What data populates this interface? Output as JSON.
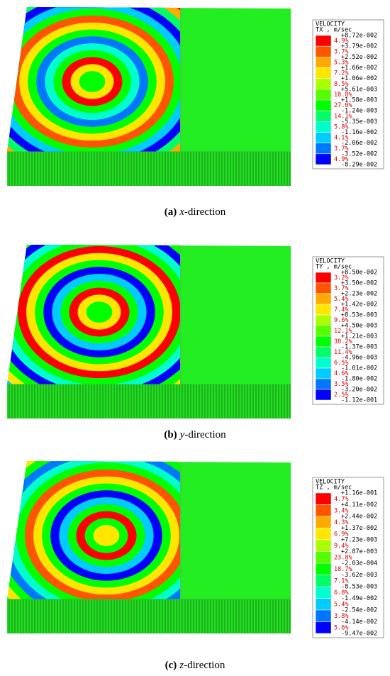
{
  "legend_colors": [
    "#ff0000",
    "#ff5500",
    "#ffaa00",
    "#ffe600",
    "#aaff00",
    "#55ff00",
    "#00ff00",
    "#00ff66",
    "#00ffcc",
    "#00ccff",
    "#0077ff",
    "#0000ff"
  ],
  "panels": [
    {
      "legend": {
        "title": "VELOCITY",
        "component": "TX , m/sec",
        "thresholds": [
          "+8.72e-002",
          "+3.79e-002",
          "+2.52e-002",
          "+1.66e-002",
          "+1.06e-002",
          "+5.61e-003",
          "+1.58e-003",
          "-1.24e-003",
          "-5.35e-003",
          "-1.16e-002",
          "-2.06e-002",
          "-3.52e-002",
          "-8.29e-002"
        ],
        "percentages": [
          "4.9%",
          "3.7%",
          "5.3%",
          "7.2%",
          "8.5%",
          "10.8%",
          "27.0%",
          "14.1%",
          "5.8%",
          "4.1%",
          "3.7%",
          "4.9%"
        ]
      },
      "caption": {
        "label": "(a)",
        "axis": "x",
        "rest": "-direction"
      }
    },
    {
      "legend": {
        "title": "VELOCITY",
        "component": "TY , m/sec",
        "thresholds": [
          "+8.50e-002",
          "+3.50e-002",
          "+2.23e-002",
          "+1.42e-002",
          "+8.53e-003",
          "+4.50e-003",
          "+1.21e-003",
          "-1.37e-003",
          "-4.96e-003",
          "-1.01e-002",
          "-1.80e-002",
          "-3.20e-002",
          "-1.12e-001"
        ],
        "percentages": [
          "3.2%",
          "3.7%",
          "5.4%",
          "7.4%",
          "9.6%",
          "12.1%",
          "30.2%",
          "11.4%",
          "6.5%",
          "4.6%",
          "3.5%",
          "2.5%"
        ]
      },
      "caption": {
        "label": "(b)",
        "axis": "y",
        "rest": "-direction"
      }
    },
    {
      "legend": {
        "title": "VELOCITY",
        "component": "TZ , m/sec",
        "thresholds": [
          "+1.16e-001",
          "+4.11e-002",
          "+2.44e-002",
          "+1.37e-002",
          "+7.23e-003",
          "+2.87e-003",
          "-2.03e-004",
          "-3.62e-003",
          "-8.53e-003",
          "-1.49e-002",
          "-2.54e-002",
          "-4.14e-002",
          "-9.47e-002"
        ],
        "percentages": [
          "4.7%",
          "3.4%",
          "4.3%",
          "6.9%",
          "9.4%",
          "23.8%",
          "18.7%",
          "7.1%",
          "6.8%",
          "5.4%",
          "3.8%",
          "5.6%"
        ]
      },
      "caption": {
        "label": "(c)",
        "axis": "z",
        "rest": "-direction"
      }
    }
  ]
}
